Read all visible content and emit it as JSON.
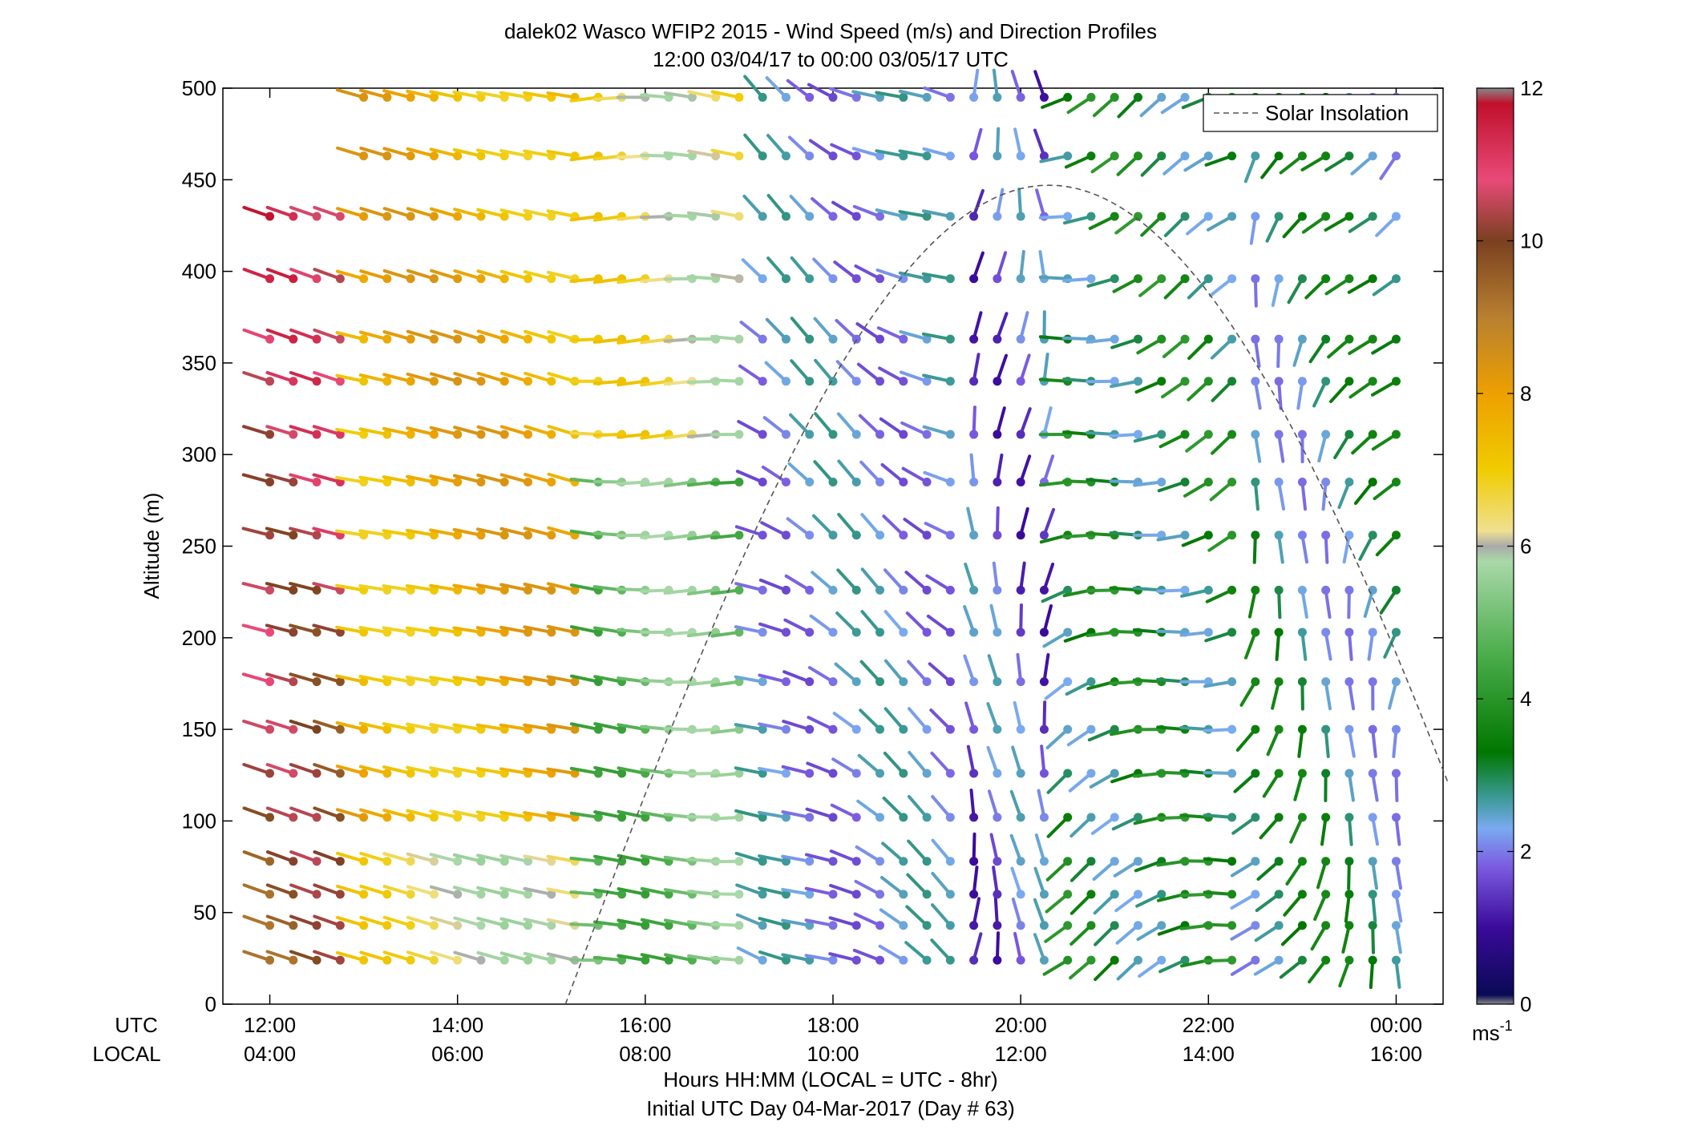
{
  "chart_data": {
    "type": "scatter",
    "title": "dalek02 Wasco WFIP2 2015 - Wind Speed (m/s) and Direction Profiles",
    "subtitle": "12:00 03/04/17 to 00:00 03/05/17  UTC",
    "ylabel": "Altitude (m)",
    "ylim": [
      0,
      500
    ],
    "yticks": [
      0,
      50,
      100,
      150,
      200,
      250,
      300,
      350,
      400,
      450,
      500
    ],
    "xlim_hours": [
      11.5,
      24.5
    ],
    "xticks_hours": [
      12,
      14,
      16,
      18,
      20,
      22,
      24
    ],
    "xtick_labels_utc": [
      "12:00",
      "14:00",
      "16:00",
      "18:00",
      "20:00",
      "22:00",
      "00:00"
    ],
    "xtick_labels_local": [
      "04:00",
      "06:00",
      "08:00",
      "10:00",
      "12:00",
      "14:00",
      "16:00"
    ],
    "row_label_utc": "UTC",
    "row_label_local": "LOCAL",
    "xlabel": "Hours HH:MM  (LOCAL = UTC - 8hr)",
    "footer": "Initial UTC Day 04-Mar-2017 (Day # 63)",
    "legend": {
      "label": "Solar Insolation",
      "placement": "top-right"
    },
    "colorbar": {
      "min": 0,
      "max": 12,
      "ticks": [
        0,
        2,
        4,
        6,
        8,
        10,
        12
      ],
      "unit_label": "ms",
      "unit_exponent": "-1",
      "stops": [
        {
          "v": 0.0,
          "c": "#888888"
        },
        {
          "v": 0.12,
          "c": "#0a0a55"
        },
        {
          "v": 1.0,
          "c": "#3a0a9a"
        },
        {
          "v": 1.8,
          "c": "#7b5be0"
        },
        {
          "v": 2.3,
          "c": "#7aaaf0"
        },
        {
          "v": 2.7,
          "c": "#3c9a98"
        },
        {
          "v": 3.3,
          "c": "#007700"
        },
        {
          "v": 4.6,
          "c": "#4cae4c"
        },
        {
          "v": 5.8,
          "c": "#a9d8a9"
        },
        {
          "v": 6.0,
          "c": "#aaaaaa"
        },
        {
          "v": 6.2,
          "c": "#f0e090"
        },
        {
          "v": 7.0,
          "c": "#f0cc00"
        },
        {
          "v": 8.0,
          "c": "#eda000"
        },
        {
          "v": 9.0,
          "c": "#b88030"
        },
        {
          "v": 10.0,
          "c": "#7a4020"
        },
        {
          "v": 10.8,
          "c": "#e84a78"
        },
        {
          "v": 11.8,
          "c": "#c0102c"
        },
        {
          "v": 12.0,
          "c": "#888888"
        }
      ]
    },
    "altitudes_m": [
      24,
      43,
      60,
      78,
      102,
      126,
      150,
      176,
      203,
      226,
      256,
      285,
      311,
      340,
      363,
      396,
      430,
      463,
      495
    ],
    "times_hours_utc": [
      12.0,
      12.25,
      12.5,
      12.75,
      13.0,
      13.25,
      13.5,
      13.75,
      14.0,
      14.25,
      14.5,
      14.75,
      15.0,
      15.25,
      15.5,
      15.75,
      16.0,
      16.25,
      16.5,
      16.75,
      17.0,
      17.25,
      17.5,
      17.75,
      18.0,
      18.25,
      18.5,
      18.75,
      19.0,
      19.25,
      19.5,
      19.75,
      20.0,
      20.25,
      20.5,
      20.75,
      21.0,
      21.25,
      21.5,
      21.75,
      22.0,
      22.25,
      22.5,
      22.75,
      23.0,
      23.25,
      23.5,
      23.75,
      24.0
    ],
    "wind_profile_phases": [
      {
        "from_hour": 11.8,
        "to_hour": 13.0,
        "speed_ms": "9.5-12",
        "wind_dir_deg": "285-290"
      },
      {
        "from_hour": 13.0,
        "to_hour": 15.5,
        "speed_ms": "6-9",
        "wind_dir_deg": "280-290"
      },
      {
        "from_hour": 15.5,
        "to_hour": 17.2,
        "speed_ms": "4-6",
        "wind_dir_deg": "260-290"
      },
      {
        "from_hour": 17.2,
        "to_hour": 19.3,
        "speed_ms": "1.5-3",
        "wind_dir_deg": "290-320"
      },
      {
        "from_hour": 19.3,
        "to_hour": 20.5,
        "speed_ms": "1-3",
        "wind_dir_deg": "340-40"
      },
      {
        "from_hour": 20.5,
        "to_hour": 22.5,
        "speed_ms": "2.5-4.5",
        "wind_dir_deg": "230-300"
      },
      {
        "from_hour": 22.5,
        "to_hour": 24.0,
        "speed_ms": "2-4",
        "wind_dir_deg": "160-250"
      }
    ],
    "solar_insolation": {
      "start_hour": 15.15,
      "peak_hour": 20.3,
      "peak_altitude_m": 447,
      "curve": "arch",
      "line_style": "dashed",
      "color": "#555555"
    }
  }
}
